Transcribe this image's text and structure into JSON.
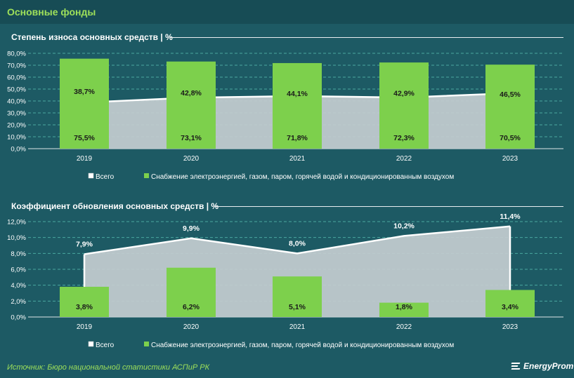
{
  "header": {
    "title": "Основные фонды"
  },
  "chart_data": [
    {
      "type": "bar",
      "title": "Степень износа основных средств | %",
      "categories": [
        "2019",
        "2020",
        "2021",
        "2022",
        "2023"
      ],
      "series": [
        {
          "name": "Всего",
          "type": "area",
          "values": [
            38.7,
            42.8,
            44.1,
            42.9,
            46.5
          ],
          "labels": [
            "38,7%",
            "42,8%",
            "44,1%",
            "42,9%",
            "46,5%"
          ]
        },
        {
          "name": "Снабжение электроэнергией, газом, паром, горячей водой и кондиционированным воздухом",
          "type": "bar",
          "values": [
            75.5,
            73.1,
            71.8,
            72.3,
            70.5
          ],
          "labels": [
            "75,5%",
            "73,1%",
            "71,8%",
            "72,3%",
            "70,5%"
          ]
        }
      ],
      "ylim": [
        0,
        80
      ],
      "yticks": [
        "0,0%",
        "10,0%",
        "20,0%",
        "30,0%",
        "40,0%",
        "50,0%",
        "60,0%",
        "70,0%",
        "80,0%"
      ],
      "grid": true,
      "legend": "bottom"
    },
    {
      "type": "bar",
      "title": "Коэффициент обновления основных средств | %",
      "categories": [
        "2019",
        "2020",
        "2021",
        "2022",
        "2023"
      ],
      "series": [
        {
          "name": "Всего",
          "type": "area",
          "values": [
            7.9,
            9.9,
            8.0,
            10.2,
            11.4
          ],
          "labels": [
            "7,9%",
            "9,9%",
            "8,0%",
            "10,2%",
            "11,4%"
          ]
        },
        {
          "name": "Снабжение электроэнергией, газом, паром, горячей водой и кондиционированным воздухом",
          "type": "bar",
          "values": [
            3.8,
            6.2,
            5.1,
            1.8,
            3.4
          ],
          "labels": [
            "3,8%",
            "6,2%",
            "5,1%",
            "1,8%",
            "3,4%"
          ]
        }
      ],
      "ylim": [
        0,
        12
      ],
      "yticks": [
        "0,0%",
        "2,0%",
        "4,0%",
        "6,0%",
        "8,0%",
        "10,0%",
        "12,0%"
      ],
      "grid": true,
      "legend": "bottom"
    }
  ],
  "colors": {
    "background": "#1d5a64",
    "header": "#174c55",
    "accent": "#9ee05a",
    "bar": "#7dd04c",
    "area": "#c4cdd0",
    "grid": "#4aa8a0"
  },
  "footer": {
    "source": "Источник: Бюро национальной статистики АСПиР РК",
    "logo": "EnergyProm",
    "logo_icon": "energyprom-logo-icon"
  }
}
